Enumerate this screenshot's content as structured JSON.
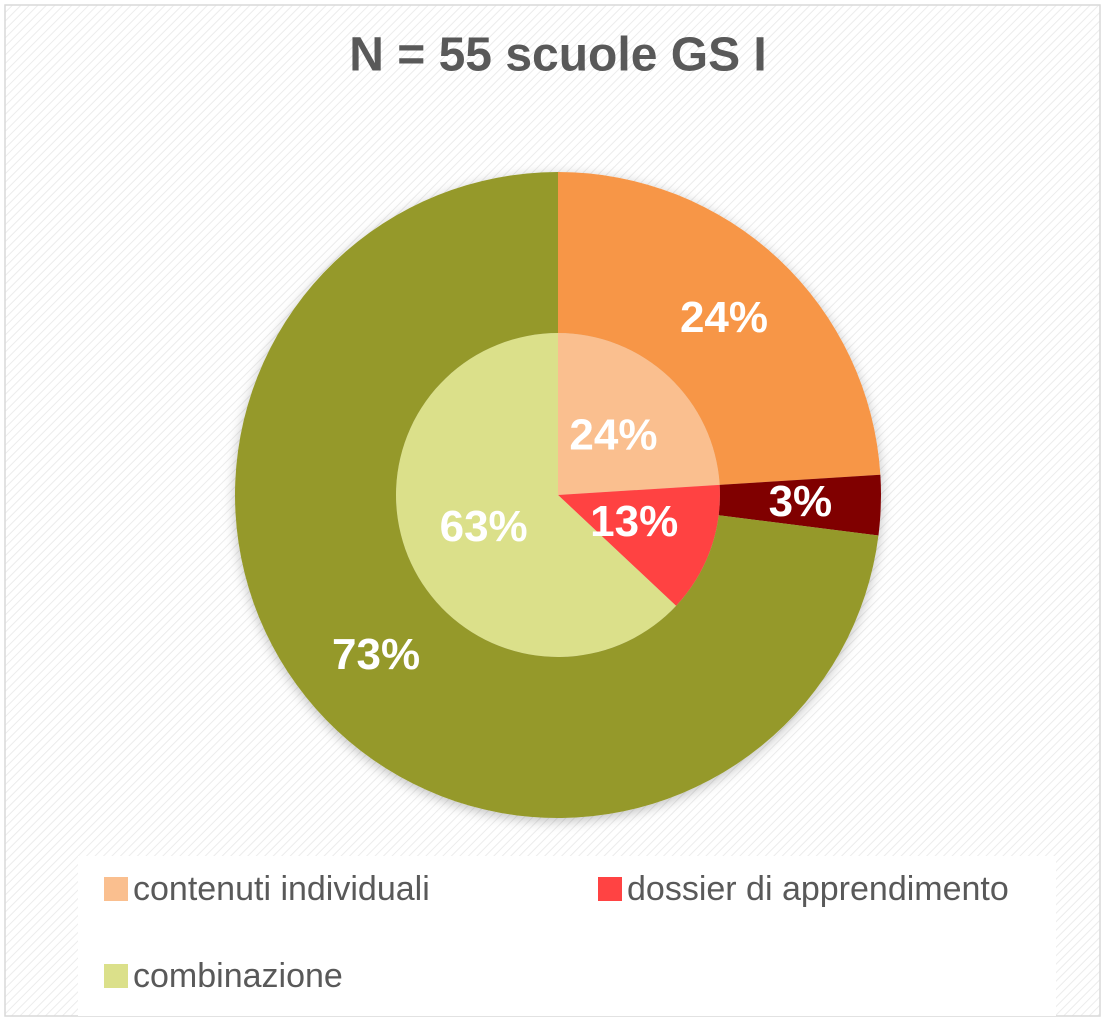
{
  "chart_data": {
    "type": "pie",
    "title": "N = 55 scuole GS I",
    "categories": [
      "contenuti individuali",
      "dossier di apprendimento",
      "combinazione"
    ],
    "series": [
      {
        "colors": [
          "#fabf8f",
          "#ff4343",
          "#dbe08a"
        ],
        "values": [
          24,
          13,
          63
        ],
        "value_labels": [
          "24%",
          "13%",
          "63%"
        ]
      },
      {
        "colors": [
          "#f79646",
          "#800000",
          "#95992a"
        ],
        "values": [
          24,
          3,
          73
        ],
        "value_labels": [
          "24%",
          "3%",
          "73%"
        ]
      }
    ],
    "legend": "bottom"
  }
}
